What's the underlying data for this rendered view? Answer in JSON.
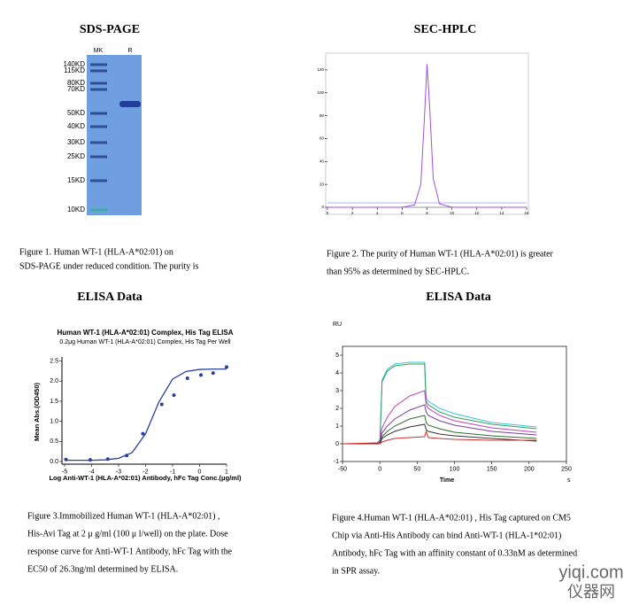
{
  "sds_page": {
    "heading": "SDS-PAGE",
    "lanes": [
      "MK",
      "R"
    ],
    "markers": [
      "140KD",
      "115KD",
      "80KD",
      "70KD",
      "50KD",
      "40KD",
      "30KD",
      "25KD",
      "15KD",
      "10KD"
    ],
    "caption": [
      "Figure 1. Human WT-1 (HLA-A*02:01) on",
      "SDS-PAGE under reduced condition. The purity is"
    ]
  },
  "sec_hplc": {
    "type": "line",
    "heading": "SEC-HPLC",
    "x": [
      0,
      6,
      7,
      7.5,
      7.8,
      8.0,
      8.2,
      8.5,
      9,
      10,
      16
    ],
    "values": [
      0,
      0,
      2,
      20,
      80,
      125,
      90,
      25,
      3,
      0,
      0
    ],
    "color": "#a050e0",
    "xlim": [
      0,
      16
    ],
    "ylim": [
      0,
      130
    ],
    "xticks": [
      0,
      2,
      4,
      6,
      8,
      10,
      12,
      14,
      16
    ],
    "yticks": [
      0,
      20,
      40,
      60,
      80,
      100,
      120
    ],
    "caption": [
      "Figure 2. The purity of Human WT-1 (HLA-A*02:01) is greater",
      "than 95% as determined by SEC-HPLC."
    ]
  },
  "elisa": {
    "type": "scatter",
    "heading": "ELISA Data",
    "title": "Human WT-1 (HLA-A*02:01) Complex, His Tag ELISA",
    "subtitle": "0.2μg Human WT-1 (HLA-A*02:01) Complex, His Tag Per Well",
    "x_label": "Log Anti-WT-1 (HLA-A*02:01) Antibody, hFc Tag Conc.(μg/ml)",
    "y_label": "Mean Abs.(OD450)",
    "x": [
      -4.95,
      -4.05,
      -3.4,
      -2.7,
      -2.1,
      -1.4,
      -0.95,
      -0.45,
      0.05,
      0.5,
      1.0
    ],
    "values": [
      0.05,
      0.04,
      0.06,
      0.15,
      0.69,
      1.42,
      1.65,
      2.07,
      2.15,
      2.2,
      2.35
    ],
    "color": "#2b3f9e",
    "curve": {
      "x": [
        -5,
        -4,
        -3.5,
        -3,
        -2.5,
        -2,
        -1.7,
        -1.5,
        -1,
        -0.5,
        0,
        0.5,
        1
      ],
      "values": [
        0.03,
        0.03,
        0.04,
        0.08,
        0.22,
        0.69,
        1.17,
        1.49,
        2.05,
        2.24,
        2.29,
        2.3,
        2.3
      ]
    },
    "xlim": [
      -5,
      1
    ],
    "ylim": [
      0,
      2.6
    ],
    "xticks": [
      -5,
      -4,
      -3,
      -2,
      -1,
      0,
      1
    ],
    "yticks": [
      {
        "value": 0,
        "label": "0.0"
      },
      {
        "value": 0.5,
        "label": "0.5"
      },
      {
        "value": 1,
        "label": "1.0"
      },
      {
        "value": 1.5,
        "label": "1.5"
      },
      {
        "value": 2,
        "label": "2.0"
      },
      {
        "value": 2.5,
        "label": "2.5"
      }
    ],
    "caption": [
      "Figure 3.Immobilized Human WT-1 (HLA-A*02:01) ,",
      "His-Avi Tag at 2 μ g/ml (100 μ l/well) on the plate. Dose",
      "response curve for Anti-WT-1 Antibody, hFc Tag with the",
      "EC50 of 26.3ng/ml determined by ELISA."
    ]
  },
  "spr": {
    "type": "line",
    "heading": "ELISA Data",
    "y_label": "RU",
    "x_label": "Time",
    "x_unit": "s",
    "x": [
      -50,
      -5,
      0,
      3,
      10,
      20,
      40,
      60,
      62,
      65,
      80,
      100,
      150,
      210
    ],
    "series": [
      {
        "color": "#35c6d0",
        "values": [
          0,
          0,
          0,
          3.6,
          4.2,
          4.5,
          4.6,
          4.6,
          2.6,
          2.4,
          2.0,
          1.7,
          1.2,
          0.95
        ]
      },
      {
        "color": "#2e9e5e",
        "values": [
          0,
          0,
          0,
          3.5,
          4.1,
          4.4,
          4.5,
          4.5,
          2.4,
          2.2,
          1.8,
          1.5,
          1.1,
          0.85
        ]
      },
      {
        "color": "#c040c0",
        "values": [
          0,
          0,
          0.2,
          0.9,
          1.5,
          2.1,
          2.7,
          3.0,
          2.2,
          2.0,
          1.6,
          1.3,
          0.9,
          0.65
        ]
      },
      {
        "color": "#7a3c9e",
        "values": [
          0,
          0,
          0.1,
          0.6,
          1.0,
          1.4,
          1.9,
          2.2,
          1.8,
          1.6,
          1.3,
          1.05,
          0.7,
          0.5
        ]
      },
      {
        "color": "#2f6e2f",
        "values": [
          0,
          0,
          0,
          0.4,
          0.7,
          1.0,
          1.4,
          1.6,
          1.2,
          1.05,
          0.85,
          0.65,
          0.45,
          0.3
        ]
      },
      {
        "color": "#333333",
        "values": [
          0,
          0,
          0,
          0.3,
          0.5,
          0.7,
          0.95,
          1.1,
          0.8,
          0.7,
          0.55,
          0.45,
          0.3,
          0.15
        ]
      },
      {
        "color": "#d03030",
        "values": [
          0,
          0.05,
          0,
          0.1,
          0.2,
          0.3,
          0.35,
          0.4,
          0.7,
          0.35,
          0.3,
          0.25,
          0.2,
          0.2
        ]
      }
    ],
    "xlim": [
      -50,
      250
    ],
    "ylim": [
      -1,
      5.5
    ],
    "xticks": [
      -50,
      0,
      50,
      100,
      150,
      200,
      250
    ],
    "yticks": [
      -1,
      0,
      1,
      2,
      3,
      4,
      5
    ],
    "caption": [
      "Figure 4.Human WT-1 (HLA-A*02:01) , His Tag captured on CM5",
      "Chip via Anti-His Antibody can bind Anti-WT-1 (HLA-1*02:01)",
      "Antibody, hFc Tag with an affinity constant of 0.33nM as determined",
      "in SPR assay."
    ]
  },
  "watermark": [
    "yiqi.com",
    "仪器网"
  ]
}
